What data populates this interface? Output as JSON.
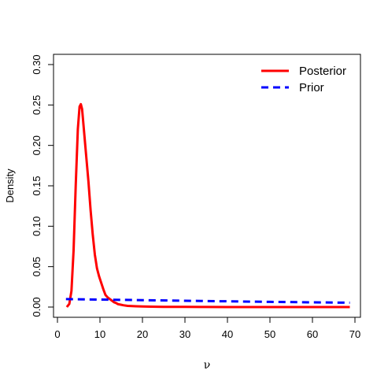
{
  "chart_data": {
    "type": "line",
    "title": "",
    "xlabel": "ν",
    "ylabel": "Density",
    "xlim": [
      0,
      70
    ],
    "ylim": [
      0,
      0.3
    ],
    "x_ticks": [
      0,
      10,
      20,
      30,
      40,
      50,
      60,
      70
    ],
    "x_tick_labels": [
      "0",
      "10",
      "20",
      "30",
      "40",
      "50",
      "60",
      "70"
    ],
    "y_ticks": [
      0,
      0.05,
      0.1,
      0.15,
      0.2,
      0.25,
      0.3
    ],
    "y_tick_labels": [
      "0.00",
      "0.05",
      "0.10",
      "0.15",
      "0.20",
      "0.25",
      "0.30"
    ],
    "grid": false,
    "legend_position": "top-right",
    "series": [
      {
        "name": "Posterior",
        "color": "#ff0000",
        "style": "solid",
        "x": [
          2.2,
          2.8,
          3.3,
          3.8,
          4.3,
          4.8,
          5.2,
          5.5,
          5.8,
          6.3,
          6.8,
          7.3,
          7.8,
          8.3,
          8.8,
          9.3,
          9.8,
          10.3,
          10.8,
          11.3,
          11.8,
          12.3,
          12.8,
          13.3,
          13.8,
          14.3,
          14.8,
          15.5,
          16.5,
          17.5,
          18.5,
          20,
          22,
          25,
          30,
          35,
          40,
          50,
          60,
          65,
          68.8
        ],
        "y": [
          0.0,
          0.004,
          0.02,
          0.07,
          0.15,
          0.22,
          0.248,
          0.251,
          0.245,
          0.215,
          0.185,
          0.155,
          0.12,
          0.09,
          0.065,
          0.048,
          0.038,
          0.03,
          0.022,
          0.015,
          0.012,
          0.01,
          0.008,
          0.006,
          0.005,
          0.0035,
          0.003,
          0.0022,
          0.0015,
          0.0012,
          0.001,
          0.0007,
          0.0005,
          0.0003,
          0.0002,
          0.0001,
          0.0,
          0.0,
          0.0,
          0.0,
          0.0
        ]
      },
      {
        "name": "Prior",
        "color": "#0000ff",
        "style": "dashed",
        "x": [
          2,
          10,
          20,
          30,
          40,
          50,
          60,
          68.8
        ],
        "y": [
          0.0098,
          0.0093,
          0.0086,
          0.0078,
          0.0071,
          0.0064,
          0.0058,
          0.0054
        ]
      }
    ]
  }
}
